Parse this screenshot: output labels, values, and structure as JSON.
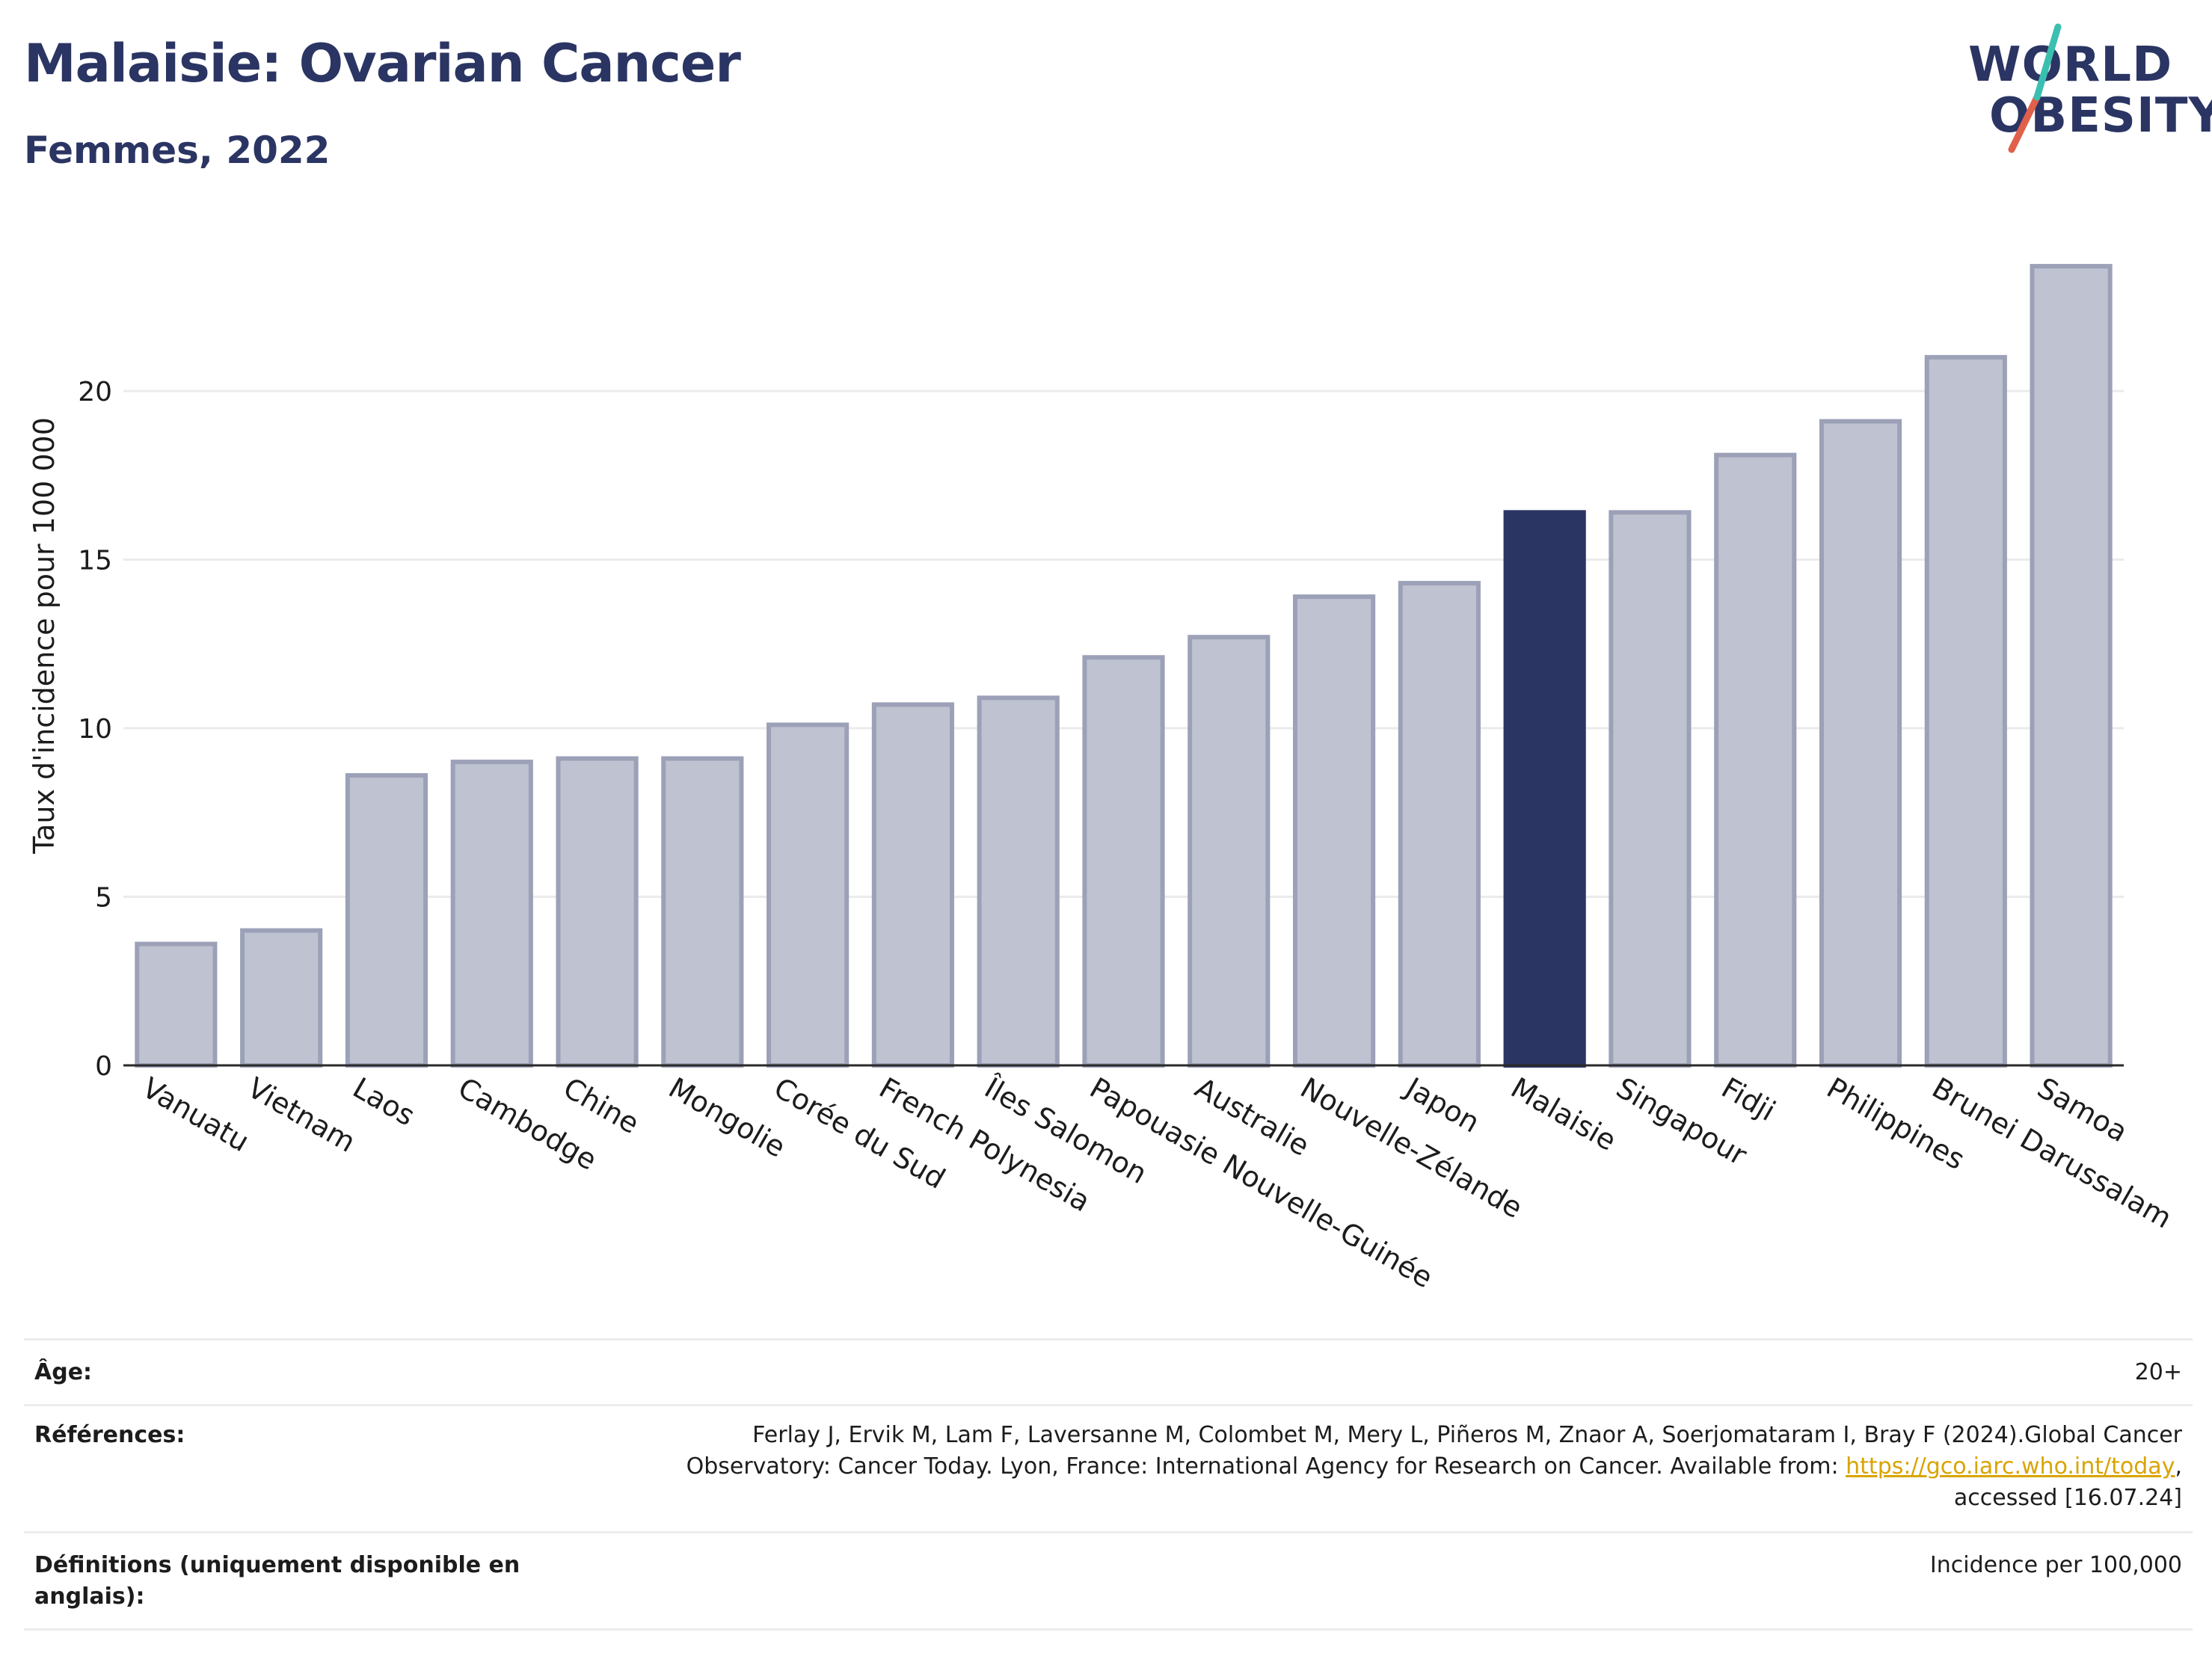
{
  "header": {
    "title": "Malaisie: Ovarian Cancer",
    "subtitle": "Femmes, 2022",
    "logo_line1": "WORLD",
    "logo_line2": "OBESITY"
  },
  "colors": {
    "highlight": "#2b3563",
    "bar_fill": "#bfc2d0",
    "bar_border": "#9ca1b8",
    "title": "#2b3563",
    "logo_teal": "#3bbfb0",
    "logo_red": "#e0604a",
    "link": "#d9a400"
  },
  "chart_data": {
    "type": "bar",
    "title": "Malaisie: Ovarian Cancer",
    "subtitle": "Femmes, 2022",
    "xlabel": "",
    "ylabel": "Taux d'incidence pour 100 000",
    "ylim": [
      0,
      24.5
    ],
    "yticks": [
      0,
      5,
      10,
      15,
      20
    ],
    "grid": true,
    "highlight": "Malaisie",
    "categories": [
      "Vanuatu",
      "Vietnam",
      "Laos",
      "Cambodge",
      "Chine",
      "Mongolie",
      "Corée du Sud",
      "French Polynesia",
      "Îles Salomon",
      "Papouasie Nouvelle-Guinée",
      "Australie",
      "Nouvelle-Zélande",
      "Japon",
      "Malaisie",
      "Singapour",
      "Fidji",
      "Philippines",
      "Brunei Darussalam",
      "Samoa"
    ],
    "values": [
      3.6,
      4.0,
      8.6,
      9.0,
      9.1,
      9.1,
      10.1,
      10.7,
      10.9,
      12.1,
      12.7,
      13.9,
      14.3,
      16.4,
      16.4,
      18.1,
      19.1,
      21.0,
      23.7
    ]
  },
  "info": {
    "age_label": "Âge:",
    "age_value": "20+",
    "ref_label": "Références:",
    "ref_line1": "Ferlay J, Ervik M, Lam F, Laversanne M, Colombet M, Mery L, Piñeros M, Znaor A, Soerjomataram I, Bray F (2024).Global Cancer",
    "ref_line2_pre": "Observatory: Cancer Today. Lyon, France: International Agency for Research on Cancer. Available from: ",
    "ref_link": "https://gco.iarc.who.int/today",
    "ref_line2_post": ",",
    "ref_line3": "accessed [16.07.24]",
    "def_label_line1": "Définitions (uniquement disponible en",
    "def_label_line2": "anglais):",
    "def_value": "Incidence per 100,000"
  }
}
